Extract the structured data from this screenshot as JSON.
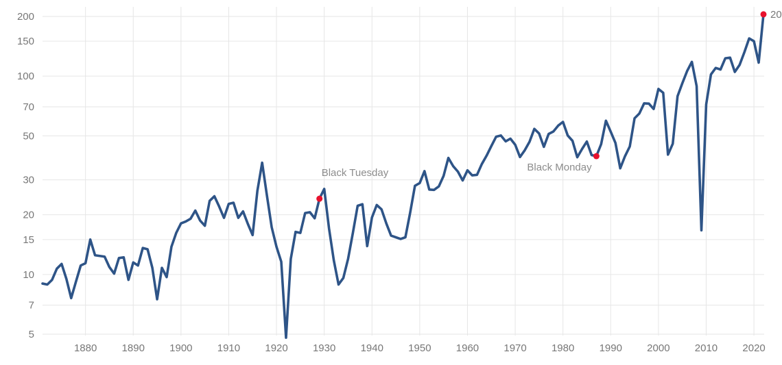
{
  "chart_data": {
    "type": "line",
    "title": "",
    "xlabel": "",
    "ylabel": "",
    "y_scale": "log",
    "xlim": [
      1871,
      2023
    ],
    "ylim": [
      5,
      210
    ],
    "grid": true,
    "x_ticks": [
      "1880",
      "1890",
      "1900",
      "1910",
      "1920",
      "1930",
      "1940",
      "1950",
      "1960",
      "1970",
      "1980",
      "1990",
      "2000",
      "2010",
      "2020"
    ],
    "y_ticks": [
      5,
      7,
      10,
      15,
      20,
      30,
      50,
      70,
      100,
      150,
      200
    ],
    "y_tick_labels": [
      "5",
      "7",
      "10",
      "15",
      "20",
      "30",
      "50",
      "70",
      "100",
      "150",
      "200"
    ],
    "line_color": "#2e5487",
    "marker_color": "#e8112d",
    "series": [
      {
        "name": "",
        "x": [
          1871,
          1872,
          1873,
          1874,
          1875,
          1876,
          1877,
          1878,
          1879,
          1880,
          1881,
          1882,
          1883,
          1884,
          1885,
          1886,
          1887,
          1888,
          1889,
          1890,
          1891,
          1892,
          1893,
          1894,
          1895,
          1896,
          1897,
          1898,
          1899,
          1900,
          1901,
          1902,
          1903,
          1904,
          1905,
          1906,
          1907,
          1908,
          1909,
          1910,
          1911,
          1912,
          1913,
          1914,
          1915,
          1916,
          1917,
          1918,
          1919,
          1920,
          1921,
          1922,
          1923,
          1924,
          1925,
          1926,
          1927,
          1928,
          1929,
          1930,
          1931,
          1932,
          1933,
          1934,
          1935,
          1936,
          1937,
          1938,
          1939,
          1940,
          1941,
          1942,
          1943,
          1944,
          1945,
          1946,
          1947,
          1948,
          1949,
          1950,
          1951,
          1952,
          1953,
          1954,
          1955,
          1956,
          1957,
          1958,
          1959,
          1960,
          1961,
          1962,
          1963,
          1964,
          1965,
          1966,
          1967,
          1968,
          1969,
          1970,
          1971,
          1972,
          1973,
          1974,
          1975,
          1976,
          1977,
          1978,
          1979,
          1980,
          1981,
          1982,
          1983,
          1984,
          1985,
          1986,
          1987,
          1988,
          1989,
          1990,
          1991,
          1992,
          1993,
          1994,
          1995,
          1996,
          1997,
          1998,
          1999,
          2000,
          2001,
          2002,
          2003,
          2004,
          2005,
          2006,
          2007,
          2008,
          2009,
          2010,
          2011,
          2012,
          2013,
          2014,
          2015,
          2016,
          2017,
          2018,
          2019,
          2020,
          2021,
          2022
        ],
        "values": [
          9.0,
          8.9,
          9.4,
          10.7,
          11.3,
          9.5,
          7.6,
          9.2,
          11.1,
          11.4,
          15.0,
          12.5,
          12.4,
          12.3,
          10.9,
          10.1,
          12.1,
          12.2,
          9.4,
          11.5,
          11.1,
          13.6,
          13.4,
          10.8,
          7.5,
          10.8,
          9.7,
          13.8,
          16.2,
          18.1,
          18.5,
          19.1,
          21.0,
          18.7,
          17.6,
          23.5,
          24.8,
          22.0,
          19.3,
          22.7,
          23.0,
          19.3,
          20.8,
          18.0,
          15.8,
          26.4,
          36.6,
          25.0,
          17.3,
          13.8,
          11.6,
          4.8,
          12.0,
          16.4,
          16.2,
          20.4,
          20.6,
          19.2,
          24.1,
          27.0,
          17.1,
          11.8,
          8.9,
          9.6,
          12.0,
          16.2,
          22.2,
          22.6,
          13.9,
          19.4,
          22.4,
          21.3,
          18.1,
          15.7,
          15.4,
          15.1,
          15.4,
          20.5,
          28.0,
          28.9,
          33.2,
          26.8,
          26.7,
          27.8,
          31.4,
          38.7,
          35.2,
          33.0,
          29.8,
          33.5,
          31.6,
          31.8,
          36.0,
          39.7,
          44.4,
          49.5,
          50.2,
          46.9,
          48.4,
          45.1,
          39.1,
          42.3,
          46.7,
          54.2,
          51.4,
          44.0,
          51.1,
          52.6,
          56.3,
          58.8,
          50.2,
          47.2,
          39.0,
          42.9,
          46.8,
          40.0,
          39.5,
          45.4,
          59.6,
          52.5,
          46.0,
          34.3,
          39.5,
          44.2,
          61.3,
          64.8,
          72.9,
          72.7,
          68.3,
          86.2,
          82.4,
          40.2,
          45.6,
          79.2,
          92.0,
          106.0,
          118.0,
          89.0,
          16.7,
          72.0,
          102.0,
          110.0,
          108.0,
          123.0,
          124.0,
          105.0,
          114.0,
          132.0,
          155.0,
          150.0,
          117.0,
          205.0
        ]
      }
    ],
    "annotations": [
      {
        "label": "Black Tuesday",
        "x": 1929,
        "y": 24.1
      },
      {
        "label": "Black Monday",
        "x": 1987,
        "y": 39.5
      },
      {
        "label": "20",
        "x": 2022,
        "y": 205.0
      }
    ]
  }
}
